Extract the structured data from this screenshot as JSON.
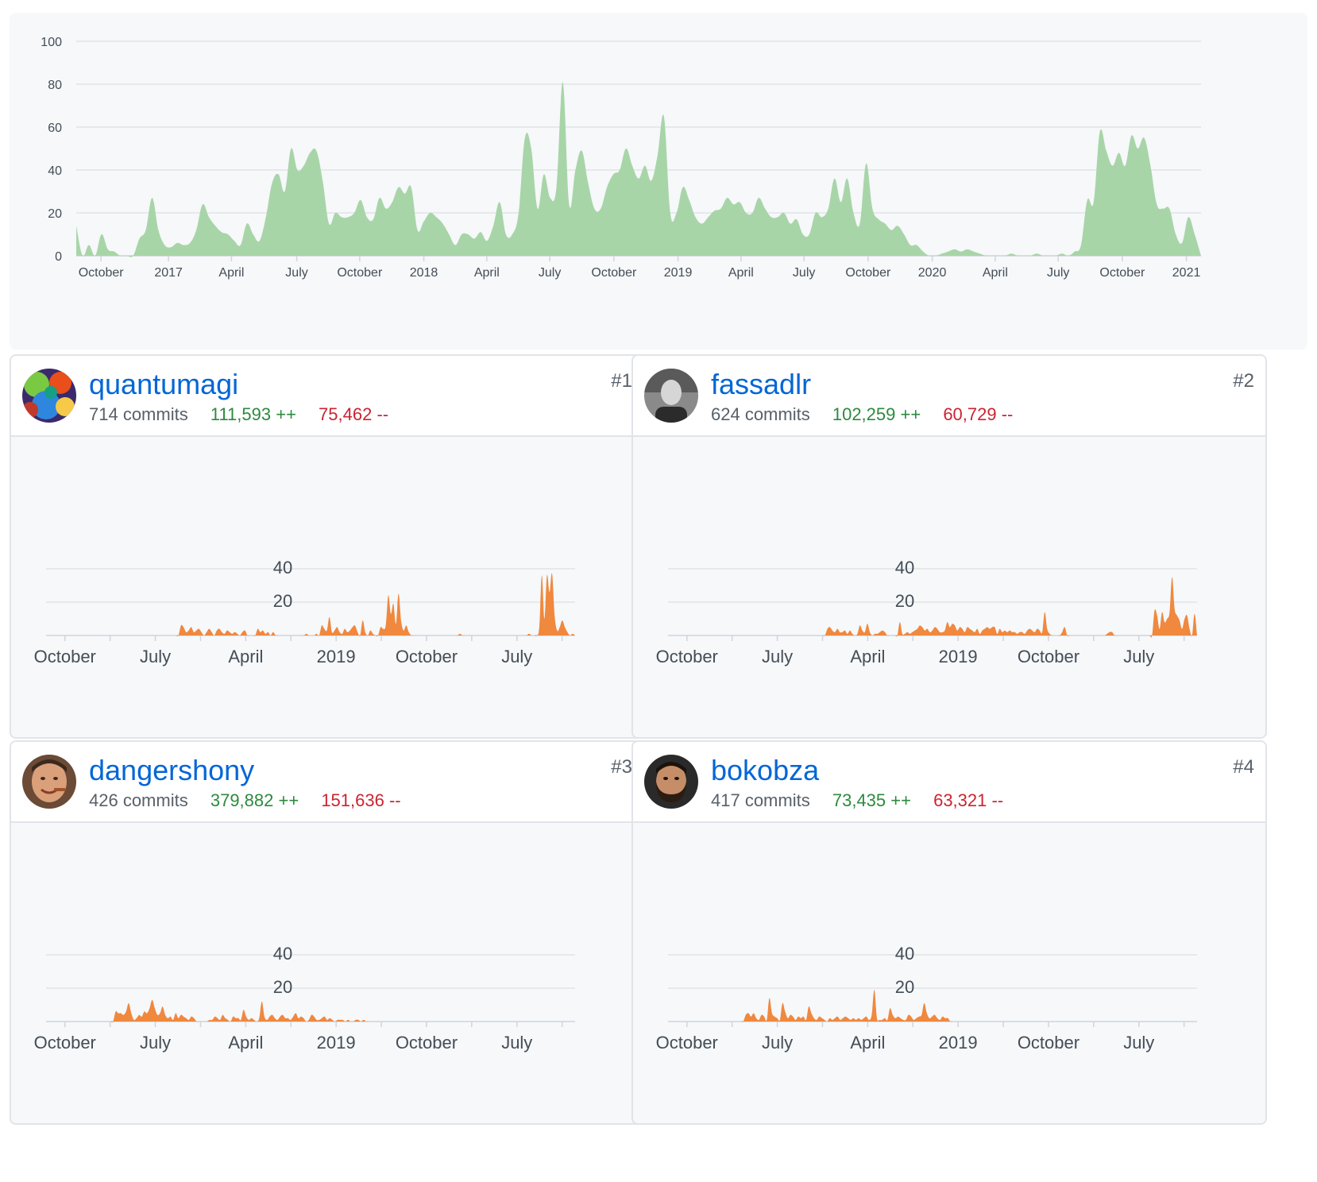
{
  "overview": {
    "chart_data": {
      "type": "area",
      "title": "",
      "ylim": [
        0,
        100
      ],
      "yticks": [
        0,
        20,
        40,
        60,
        80,
        100
      ],
      "xticks": [
        "October",
        "2017",
        "April",
        "July",
        "October",
        "2018",
        "April",
        "July",
        "October",
        "2019",
        "April",
        "July",
        "October",
        "2020",
        "April",
        "July",
        "October",
        "2021"
      ],
      "color": "#a8d5a8",
      "values": [
        14,
        0,
        5,
        0,
        10,
        3,
        2,
        0,
        0,
        0,
        8,
        12,
        27,
        12,
        5,
        4,
        6,
        5,
        6,
        12,
        24,
        18,
        14,
        11,
        10,
        7,
        5,
        15,
        10,
        7,
        18,
        34,
        38,
        30,
        50,
        40,
        42,
        48,
        49,
        35,
        15,
        20,
        18,
        18,
        20,
        26,
        18,
        17,
        27,
        22,
        25,
        32,
        29,
        32,
        12,
        16,
        20,
        18,
        15,
        10,
        5,
        10,
        10,
        8,
        11,
        7,
        14,
        25,
        10,
        10,
        20,
        55,
        50,
        22,
        38,
        27,
        32,
        81,
        24,
        40,
        49,
        34,
        22,
        22,
        32,
        38,
        40,
        50,
        42,
        36,
        42,
        35,
        47,
        65,
        20,
        20,
        32,
        26,
        18,
        15,
        18,
        21,
        22,
        27,
        24,
        25,
        20,
        20,
        27,
        22,
        18,
        18,
        20,
        15,
        17,
        10,
        10,
        20,
        18,
        22,
        36,
        25,
        36,
        20,
        15,
        43,
        22,
        17,
        15,
        12,
        14,
        10,
        5,
        5,
        2,
        0,
        0,
        1,
        2,
        3,
        2,
        3,
        2,
        1,
        0,
        0,
        0,
        0,
        1,
        0,
        0,
        0,
        1,
        0,
        0,
        0,
        1,
        0,
        2,
        5,
        26,
        25,
        58,
        49,
        42,
        48,
        42,
        56,
        50,
        55,
        42,
        24,
        22,
        22,
        10,
        6,
        18,
        10,
        0
      ],
      "x_tick_positions": [
        0.022,
        0.082,
        0.138,
        0.196,
        0.252,
        0.309,
        0.365,
        0.421,
        0.478,
        0.535,
        0.591,
        0.647,
        0.704,
        0.761,
        0.817,
        0.873,
        0.93,
        0.987
      ]
    }
  },
  "contributors": [
    {
      "username": "quantumagi",
      "rank": "#1",
      "commits": "714 commits",
      "additions": "111,593 ++",
      "deletions": "75,462 --",
      "avatar": "psychedelic-avatar",
      "chart_data": {
        "type": "area",
        "ylim": [
          0,
          45
        ],
        "yticks": [
          20,
          40
        ],
        "xticks": [
          "October",
          "July",
          "April",
          "2019",
          "October",
          "July"
        ],
        "color": "#f0883e",
        "values": [
          0,
          0,
          0,
          0,
          0,
          0,
          0,
          0,
          0,
          0,
          0,
          0,
          0,
          0,
          0,
          0,
          0,
          0,
          0,
          0,
          0,
          0,
          0,
          0,
          0,
          0,
          0,
          0,
          0,
          0,
          0,
          0,
          0,
          0,
          0,
          0,
          0,
          0,
          0,
          0,
          0,
          0,
          0,
          0,
          0,
          0,
          0,
          0,
          0,
          6,
          5,
          2,
          3,
          5,
          2,
          3,
          4,
          2,
          0,
          2,
          4,
          2,
          0,
          3,
          4,
          2,
          1,
          3,
          2,
          1,
          2,
          1,
          0,
          2,
          3,
          0,
          0,
          0,
          0,
          4,
          2,
          3,
          1,
          2,
          0,
          2,
          0,
          0,
          0,
          0,
          0,
          0,
          0,
          0,
          0,
          0,
          0,
          0,
          1,
          0,
          0,
          0,
          1,
          0,
          6,
          4,
          3,
          11,
          2,
          3,
          5,
          2,
          1,
          4,
          2,
          3,
          5,
          6,
          2,
          0,
          9,
          2,
          0,
          3,
          1,
          0,
          0,
          5,
          4,
          6,
          24,
          13,
          19,
          7,
          25,
          9,
          3,
          6,
          2,
          0,
          0,
          0,
          0,
          0,
          0,
          0,
          0,
          0,
          0,
          0,
          0,
          0,
          0,
          0,
          0,
          0,
          0,
          0,
          1,
          0,
          0,
          0,
          0,
          0,
          0,
          0,
          0,
          0,
          0,
          0,
          0,
          0,
          0,
          0,
          0,
          0,
          0,
          0,
          0,
          0,
          0,
          0,
          0,
          0,
          0,
          1,
          0,
          0,
          0,
          5,
          36,
          10,
          36,
          26,
          37,
          12,
          3,
          5,
          9,
          5,
          2,
          0,
          1,
          0
        ]
      }
    },
    {
      "username": "fassadlr",
      "rank": "#2",
      "commits": "624 commits",
      "additions": "102,259 ++",
      "deletions": "60,729 --",
      "avatar": "portrait-avatar",
      "chart_data": {
        "type": "area",
        "ylim": [
          0,
          45
        ],
        "yticks": [
          20,
          40
        ],
        "xticks": [
          "October",
          "July",
          "April",
          "2019",
          "October",
          "July"
        ],
        "color": "#f0883e",
        "values": [
          0,
          0,
          0,
          0,
          0,
          0,
          0,
          0,
          0,
          0,
          0,
          0,
          0,
          0,
          0,
          0,
          0,
          0,
          0,
          0,
          0,
          0,
          0,
          0,
          0,
          0,
          0,
          0,
          0,
          0,
          0,
          0,
          0,
          0,
          0,
          0,
          0,
          0,
          0,
          0,
          0,
          0,
          0,
          0,
          0,
          0,
          0,
          0,
          0,
          0,
          0,
          0,
          0,
          0,
          0,
          0,
          0,
          0,
          0,
          0,
          4,
          5,
          3,
          2,
          4,
          2,
          2,
          3,
          1,
          3,
          1,
          0,
          1,
          6,
          3,
          2,
          7,
          2,
          0,
          1,
          1,
          2,
          3,
          2,
          0,
          0,
          0,
          0,
          0,
          8,
          1,
          1,
          2,
          1,
          2,
          3,
          4,
          6,
          5,
          3,
          4,
          2,
          3,
          5,
          4,
          2,
          2,
          3,
          8,
          5,
          7,
          6,
          3,
          5,
          4,
          2,
          5,
          4,
          3,
          2,
          4,
          1,
          3,
          4,
          5,
          4,
          5,
          5,
          1,
          4,
          2,
          3,
          2,
          3,
          2,
          2,
          1,
          2,
          2,
          1,
          3,
          4,
          3,
          2,
          4,
          3,
          2,
          14,
          4,
          1,
          0,
          0,
          0,
          0,
          2,
          5,
          0,
          0,
          0,
          0,
          0,
          0,
          0,
          0,
          0,
          0,
          0,
          0,
          0,
          0,
          0,
          0,
          1,
          2,
          2,
          0,
          0,
          0,
          0,
          0,
          0,
          0,
          0,
          0,
          0,
          0,
          0,
          0,
          0,
          0,
          0,
          15,
          12,
          4,
          14,
          8,
          10,
          14,
          35,
          16,
          12,
          9,
          4,
          10,
          12,
          4,
          0,
          13,
          0
        ]
      }
    },
    {
      "username": "dangershony",
      "rank": "#3",
      "commits": "426 commits",
      "additions": "379,882 ++",
      "deletions": "151,636 --",
      "avatar": "smiling-man-avatar",
      "chart_data": {
        "type": "area",
        "ylim": [
          0,
          45
        ],
        "yticks": [
          20,
          40
        ],
        "xticks": [
          "October",
          "July",
          "April",
          "2019",
          "October",
          "July"
        ],
        "color": "#f0883e",
        "values": [
          0,
          0,
          0,
          0,
          0,
          0,
          0,
          0,
          0,
          0,
          0,
          0,
          0,
          0,
          0,
          0,
          0,
          0,
          0,
          0,
          0,
          0,
          0,
          6,
          5,
          5,
          4,
          6,
          11,
          5,
          1,
          2,
          4,
          3,
          6,
          5,
          8,
          13,
          8,
          4,
          5,
          9,
          4,
          2,
          3,
          1,
          5,
          2,
          4,
          3,
          2,
          1,
          3,
          2,
          0,
          0,
          0,
          0,
          0,
          1,
          1,
          3,
          2,
          1,
          4,
          2,
          1,
          0,
          3,
          2,
          2,
          1,
          7,
          3,
          1,
          2,
          1,
          0,
          2,
          12,
          3,
          1,
          3,
          4,
          2,
          1,
          3,
          4,
          2,
          2,
          1,
          3,
          5,
          2,
          3,
          2,
          0,
          1,
          4,
          3,
          1,
          1,
          2,
          3,
          1,
          2,
          1,
          0,
          1,
          1,
          1,
          0,
          1,
          0,
          0,
          1,
          1,
          0,
          1,
          0,
          0,
          0,
          0,
          0,
          0,
          0,
          0,
          0,
          0,
          0,
          0,
          0,
          0,
          0,
          0,
          0,
          0,
          0,
          0,
          0,
          0,
          0,
          0,
          0,
          0,
          0,
          0,
          0,
          0,
          0,
          0,
          0,
          0,
          0,
          0,
          0,
          0,
          0,
          0,
          0,
          0,
          0,
          0,
          0,
          0,
          0,
          0,
          0,
          0,
          0,
          0,
          0,
          0,
          0,
          0,
          0,
          0,
          0,
          0,
          0,
          0,
          0,
          0,
          0,
          0,
          0,
          0,
          0,
          0,
          0,
          0,
          0,
          0,
          0,
          0,
          0,
          0,
          0,
          0,
          0
        ]
      }
    },
    {
      "username": "bokobza",
      "rank": "#4",
      "commits": "417 commits",
      "additions": "73,435 ++",
      "deletions": "63,321 --",
      "avatar": "bearded-man-avatar",
      "chart_data": {
        "type": "area",
        "ylim": [
          0,
          45
        ],
        "yticks": [
          20,
          40
        ],
        "xticks": [
          "October",
          "July",
          "April",
          "2019",
          "October",
          "July"
        ],
        "color": "#f0883e",
        "values": [
          0,
          0,
          0,
          0,
          0,
          0,
          0,
          0,
          0,
          0,
          0,
          0,
          0,
          0,
          0,
          0,
          0,
          0,
          0,
          0,
          0,
          0,
          0,
          0,
          0,
          0,
          4,
          5,
          3,
          5,
          2,
          1,
          4,
          3,
          1,
          14,
          5,
          3,
          2,
          1,
          11,
          6,
          2,
          4,
          3,
          1,
          3,
          2,
          3,
          1,
          9,
          5,
          2,
          1,
          3,
          2,
          1,
          0,
          2,
          1,
          2,
          3,
          1,
          2,
          3,
          2,
          1,
          2,
          1,
          2,
          1,
          2,
          3,
          1,
          4,
          19,
          2,
          1,
          1,
          2,
          1,
          8,
          4,
          2,
          3,
          2,
          1,
          1,
          4,
          3,
          1,
          2,
          3,
          4,
          11,
          5,
          2,
          3,
          4,
          2,
          1,
          3,
          2,
          2,
          0,
          0,
          0,
          0,
          0,
          0,
          0,
          0,
          0,
          0,
          0,
          0,
          0,
          0,
          0,
          0,
          0,
          0,
          0,
          0,
          0,
          0,
          0,
          0,
          0,
          0,
          0,
          0,
          0,
          0,
          0,
          0,
          0,
          0,
          0,
          0,
          0,
          0,
          0,
          0,
          0,
          0,
          0,
          0,
          0,
          0,
          0,
          0,
          0,
          0,
          0,
          0,
          0,
          0,
          0,
          0,
          0,
          0,
          0,
          0,
          0,
          0,
          0,
          0,
          0,
          0,
          0,
          0,
          0,
          0,
          0,
          0,
          0,
          0,
          0,
          0,
          0,
          0,
          0,
          0,
          0,
          0,
          0,
          0,
          0,
          0,
          0,
          0,
          0,
          0,
          0,
          0,
          0,
          0,
          0
        ]
      }
    }
  ]
}
